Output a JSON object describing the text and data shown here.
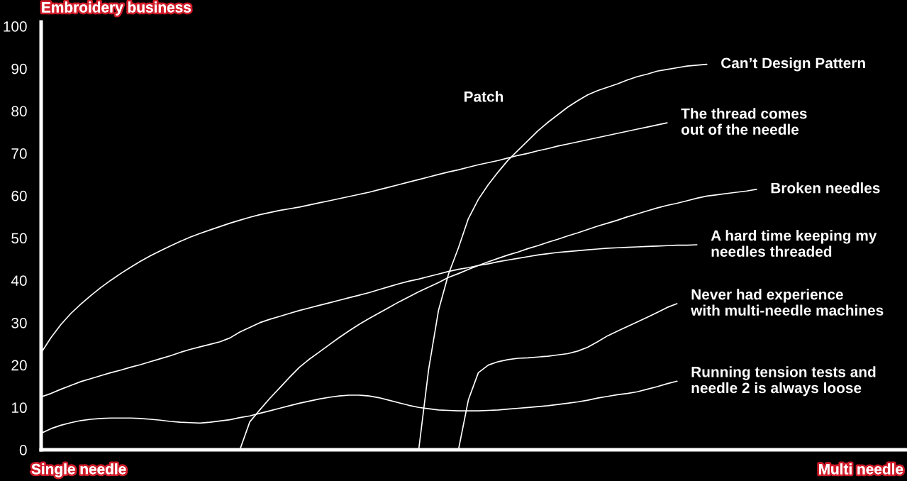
{
  "chart_data": {
    "type": "line",
    "ylabel": "Embroidery business",
    "categories": [
      null,
      null,
      null,
      null,
      null,
      null,
      null,
      null,
      null,
      null,
      null,
      null,
      null,
      null,
      null,
      null,
      null,
      null,
      null,
      null,
      null,
      null,
      null,
      null,
      null,
      null,
      null,
      null,
      null,
      null,
      null,
      null,
      null,
      null,
      null,
      null,
      null,
      null,
      null,
      null,
      null,
      null,
      null,
      null,
      null,
      null,
      null,
      null,
      null,
      null,
      null,
      null,
      null,
      null,
      null,
      null,
      null,
      null,
      null,
      null,
      null,
      null,
      null,
      null,
      null,
      null,
      null,
      null,
      null,
      null,
      null,
      null,
      null,
      null,
      null,
      null,
      null,
      null,
      null,
      null,
      null,
      null,
      null,
      null,
      null,
      null,
      null,
      null
    ],
    "series": [
      {
        "name": "Can’t Design Pattern",
        "color": "#ffffff",
        "values": [
          null,
          null,
          null,
          null,
          null,
          null,
          null,
          null,
          null,
          null,
          null,
          null,
          null,
          null,
          null,
          null,
          null,
          null,
          null,
          null,
          null,
          null,
          null,
          null,
          null,
          null,
          null,
          null,
          null,
          null,
          null,
          null,
          null,
          null,
          null,
          null,
          null,
          null,
          0,
          19,
          33.0,
          41.5,
          47.7,
          54.6,
          59.1,
          62.6,
          65.6,
          68.4,
          70.7,
          73.0,
          75.3,
          77.3,
          79.1,
          80.9,
          82.4,
          83.8,
          84.8,
          85.6,
          86.4,
          87.3,
          88.1,
          88.7,
          89.4,
          89.8,
          90.2,
          90.6,
          90.8,
          91.0,
          null,
          null,
          null,
          null,
          null,
          null,
          null,
          null,
          null,
          null,
          null,
          null,
          null,
          null,
          null,
          null,
          null,
          null,
          null,
          null
        ]
      },
      {
        "name": "The thread comes\nout of the needle",
        "color": "#ffffff",
        "values": [
          22.9,
          26.5,
          29.6,
          32.2,
          34.4,
          36.4,
          38.3,
          40.0,
          41.6,
          43.1,
          44.5,
          45.8,
          47.0,
          48.1,
          49.2,
          50.2,
          51.1,
          51.9,
          52.7,
          53.5,
          54.2,
          54.9,
          55.5,
          56.0,
          56.5,
          56.9,
          57.3,
          57.8,
          58.3,
          58.8,
          59.3,
          59.8,
          60.3,
          60.8,
          61.4,
          62.0,
          62.6,
          63.2,
          63.8,
          64.4,
          65.0,
          65.6,
          66.1,
          66.7,
          67.3,
          67.8,
          68.3,
          68.9,
          69.5,
          70.0,
          70.6,
          71.1,
          71.7,
          72.2,
          72.7,
          73.2,
          73.7,
          74.2,
          74.7,
          75.2,
          75.7,
          76.2,
          76.7,
          77.2,
          null,
          null,
          null,
          null,
          null,
          null,
          null,
          null,
          null,
          null,
          null,
          null,
          null,
          null,
          null,
          null,
          null,
          null,
          null,
          null,
          null,
          null,
          null,
          null
        ]
      },
      {
        "name": "Broken needles",
        "color": "#ffffff",
        "values": [
          null,
          null,
          null,
          null,
          null,
          null,
          null,
          null,
          null,
          null,
          null,
          null,
          null,
          null,
          null,
          null,
          null,
          null,
          null,
          null,
          0,
          6.6,
          9.4,
          12.1,
          14.6,
          17.1,
          19.5,
          21.4,
          23.1,
          24.8,
          26.5,
          28.1,
          29.6,
          31.0,
          32.3,
          33.6,
          34.9,
          36.1,
          37.3,
          38.4,
          39.5,
          40.7,
          41.6,
          42.6,
          43.5,
          44.4,
          45.2,
          46.0,
          46.7,
          47.5,
          48.2,
          49.0,
          49.7,
          50.5,
          51.2,
          52.0,
          52.8,
          53.5,
          54.2,
          55.0,
          55.7,
          56.4,
          57.1,
          57.7,
          58.2,
          58.8,
          59.4,
          59.9,
          60.2,
          60.5,
          60.8,
          61.1,
          61.5,
          null,
          null,
          null,
          null,
          null,
          null,
          null,
          null,
          null,
          null,
          null,
          null,
          null,
          null,
          null
        ]
      },
      {
        "name": "A hard time keeping my\nneedles threaded",
        "color": "#ffffff",
        "values": [
          12.5,
          13.3,
          14.3,
          15.2,
          16.1,
          16.8,
          17.5,
          18.2,
          18.8,
          19.5,
          20.1,
          20.8,
          21.5,
          22.2,
          23.0,
          23.7,
          24.3,
          24.9,
          25.5,
          26.4,
          27.8,
          28.9,
          30.0,
          30.8,
          31.5,
          32.2,
          32.9,
          33.5,
          34.1,
          34.7,
          35.3,
          35.9,
          36.5,
          37.1,
          37.8,
          38.5,
          39.2,
          39.8,
          40.3,
          40.9,
          41.5,
          42.1,
          42.6,
          43.0,
          43.5,
          43.9,
          44.4,
          44.8,
          45.2,
          45.6,
          46.0,
          46.3,
          46.6,
          46.8,
          47.0,
          47.2,
          47.4,
          47.6,
          47.7,
          47.8,
          47.9,
          48.0,
          48.1,
          48.2,
          48.3,
          48.3,
          48.4,
          null,
          null,
          null,
          null,
          null,
          null,
          null,
          null,
          null,
          null,
          null,
          null,
          null,
          null,
          null,
          null,
          null,
          null,
          null,
          null,
          null
        ]
      },
      {
        "name": "Never had experience\nwith multi-needle machines",
        "color": "#ffffff",
        "values": [
          null,
          null,
          null,
          null,
          null,
          null,
          null,
          null,
          null,
          null,
          null,
          null,
          null,
          null,
          null,
          null,
          null,
          null,
          null,
          null,
          null,
          null,
          null,
          null,
          null,
          null,
          null,
          null,
          null,
          null,
          null,
          null,
          null,
          null,
          null,
          null,
          null,
          null,
          null,
          null,
          null,
          null,
          0,
          11.8,
          18.2,
          20.0,
          20.8,
          21.3,
          21.6,
          21.7,
          21.9,
          22.1,
          22.4,
          22.7,
          23.3,
          24.2,
          25.5,
          26.9,
          28.0,
          29.1,
          30.2,
          31.3,
          32.4,
          33.6,
          34.5,
          null,
          null,
          null,
          null,
          null,
          null,
          null,
          null,
          null,
          null,
          null,
          null,
          null,
          null,
          null,
          null,
          null,
          null,
          null,
          null,
          null,
          null,
          null
        ]
      },
      {
        "name": "Running tension tests and\nneedle 2 is always loose",
        "color": "#ffffff",
        "values": [
          3.9,
          5.0,
          5.8,
          6.4,
          6.9,
          7.2,
          7.4,
          7.5,
          7.5,
          7.5,
          7.4,
          7.2,
          7.0,
          6.7,
          6.5,
          6.4,
          6.3,
          6.5,
          6.8,
          7.1,
          7.6,
          8.0,
          8.6,
          9.2,
          9.8,
          10.4,
          11.0,
          11.5,
          12.0,
          12.4,
          12.7,
          12.9,
          12.9,
          12.7,
          12.3,
          11.7,
          11.1,
          10.5,
          10.0,
          9.7,
          9.4,
          9.3,
          9.2,
          9.2,
          9.2,
          9.3,
          9.4,
          9.6,
          9.8,
          10.0,
          10.2,
          10.4,
          10.7,
          11.0,
          11.3,
          11.7,
          12.2,
          12.6,
          13.0,
          13.3,
          13.7,
          14.3,
          14.9,
          15.6,
          16.2,
          null,
          null,
          null,
          null,
          null,
          null,
          null,
          null,
          null,
          null,
          null,
          null,
          null,
          null,
          null,
          null,
          null,
          null,
          null,
          null,
          null,
          null,
          null
        ]
      }
    ],
    "ylim": [
      0,
      101
    ],
    "yticks": [
      0,
      10,
      20,
      30,
      40,
      50,
      60,
      70,
      80,
      90,
      100
    ],
    "tick_labels": "y",
    "annotations": [
      "Patch",
      "Single needle",
      "Multi needle"
    ]
  }
}
